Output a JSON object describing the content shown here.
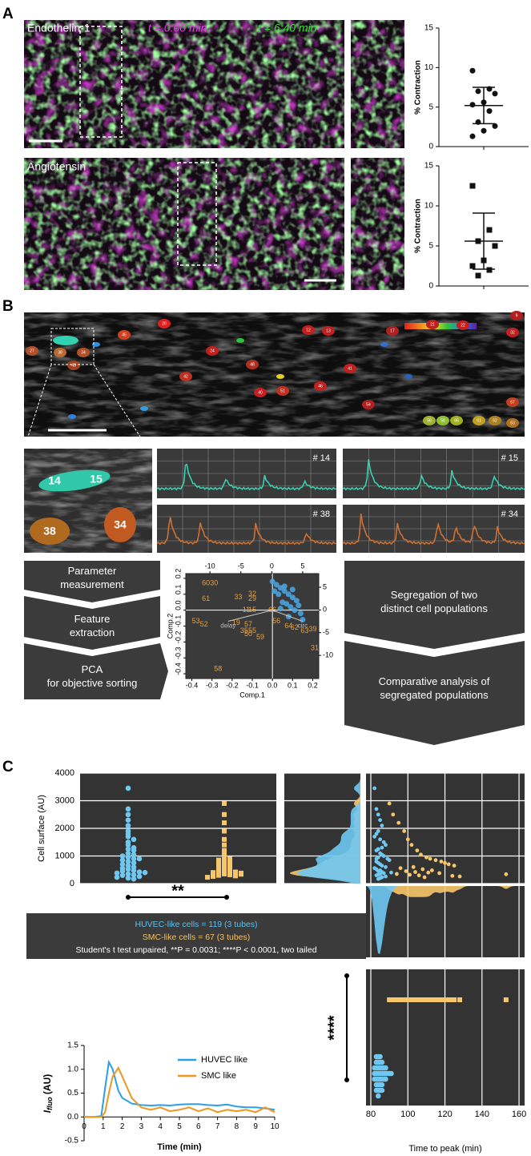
{
  "panel_labels": [
    "A",
    "B",
    "C"
  ],
  "panel_a": {
    "images": [
      "Endothelin-1",
      "Angiotensin"
    ],
    "time_start": "t = 0:00 min",
    "time_end": "t = 6:40 min"
  },
  "panel_b": {
    "cell_numbers": [
      "27",
      "38",
      "34",
      "43",
      "45",
      "20",
      "24",
      "12",
      "13",
      "17",
      "21",
      "22",
      "32",
      "9",
      "41",
      "42",
      "46",
      "48",
      "51",
      "54",
      "56",
      "58",
      "66",
      "61",
      "62",
      "63",
      "67",
      "40"
    ],
    "zoom_numbers": [
      "14",
      "15",
      "38",
      "34"
    ],
    "trace_labels": [
      "# 14",
      "# 15",
      "# 38",
      "# 34"
    ],
    "flow_left": [
      [
        "Parameter",
        "measurement"
      ],
      [
        "Feature",
        "extraction"
      ],
      [
        "PCA",
        "for objective sorting"
      ]
    ],
    "flow_right": [
      [
        "Segregation of two",
        "distinct cell populations"
      ],
      [
        "Comparative analysis of",
        "segregated populations"
      ]
    ]
  },
  "panel_c": {
    "legend_lines": [
      "HUVEC-like cells = 119 (3 tubes)",
      "SMC-like cells = 67 (3 tubes)",
      "Student's t test unpaired, **P = 0.0031; ****P < 0.0001, two tailed"
    ],
    "legend_colors": [
      "#5bc0f0",
      "#f5c060",
      "#ffffff"
    ],
    "significance": [
      "**",
      "****"
    ]
  },
  "chart_data": [
    {
      "type": "dot",
      "ylabel": "% Contraction",
      "values": [
        9.6,
        7.3,
        7.0,
        6.7,
        5.6,
        5.3,
        4.5,
        3.1,
        2.6,
        2.0,
        1.3
      ],
      "mean": 5.2,
      "sd": 2.3,
      "ylim": [
        0,
        15
      ],
      "yticks": [
        0,
        5,
        10,
        15
      ],
      "color": "#111111",
      "marker": "circle"
    },
    {
      "type": "dot",
      "ylabel": "% Contraction",
      "values": [
        12.5,
        7.0,
        5.6,
        5.0,
        3.2,
        2.5,
        2.0,
        1.3
      ],
      "mean": 5.6,
      "sd": 3.5,
      "ylim": [
        0,
        15
      ],
      "yticks": [
        0,
        5,
        10,
        15
      ],
      "color": "#111111",
      "marker": "square"
    },
    {
      "type": "biplot",
      "xlabel": "Comp.1",
      "ylabel": "Comp.2",
      "xlim": [
        -0.43,
        0.23
      ],
      "ylim": [
        -0.43,
        0.23
      ],
      "xticks": [
        {
          "value": -0.4,
          "label": "-0.4"
        },
        {
          "value": -0.3,
          "label": "-0.3"
        },
        {
          "value": -0.2,
          "label": "-0.2"
        },
        {
          "value": -0.1,
          "label": "-0.1"
        },
        {
          "value": 0,
          "label": "0.0"
        },
        0.1,
        0.2
      ],
      "yticks": [
        {
          "value": -0.4,
          "label": "-0.4"
        },
        {
          "value": -0.3,
          "label": "-0.3"
        },
        {
          "value": -0.2,
          "label": "-0.2"
        },
        {
          "value": -0.1,
          "label": "-0.1"
        },
        {
          "value": 0,
          "label": "0.0"
        },
        0.1,
        0.2
      ],
      "x2lim": [
        -13.9,
        7.6
      ],
      "x2ticks": [
        -10,
        -5,
        0,
        5
      ],
      "y2lim": [
        -15.1,
        8.0
      ],
      "y2ticks": [
        5,
        0,
        -5,
        -10
      ],
      "series": [
        {
          "color": "#e8a040",
          "labels": [
            "60",
            "30",
            "61",
            "33",
            "32",
            "29",
            "11",
            "15",
            "19",
            "57",
            "53",
            "52",
            "35",
            "55",
            "50",
            "59",
            "58",
            "56",
            "64",
            "62",
            "63",
            "39",
            "31",
            "66"
          ],
          "x": [
            -0.33,
            -0.29,
            -0.33,
            -0.17,
            -0.1,
            -0.1,
            -0.13,
            -0.1,
            -0.18,
            -0.12,
            -0.38,
            -0.34,
            -0.14,
            -0.1,
            -0.12,
            -0.06,
            -0.27,
            0.02,
            0.08,
            0.11,
            0.16,
            0.2,
            0.21,
            0.0
          ],
          "values": [
            0.17,
            0.17,
            0.07,
            0.08,
            0.1,
            0.07,
            0.0,
            0.0,
            -0.08,
            -0.09,
            -0.07,
            -0.09,
            -0.13,
            -0.13,
            -0.15,
            -0.17,
            -0.37,
            -0.07,
            -0.1,
            -0.11,
            -0.13,
            -0.12,
            -0.24,
            0.0
          ]
        },
        {
          "color": "#4aa8e8",
          "x": [
            0.0,
            0.02,
            0.04,
            0.06,
            0.08,
            0.1,
            0.12,
            0.03,
            0.05,
            0.07,
            0.09,
            0.11,
            0.14,
            0.01,
            0.06,
            0.1,
            0.13,
            0.15,
            0.04,
            0.08
          ],
          "values": [
            0.18,
            0.16,
            0.14,
            0.12,
            0.1,
            0.08,
            0.06,
            0.1,
            0.05,
            0.04,
            0.02,
            0.0,
            -0.02,
            0.12,
            0.15,
            0.13,
            0.03,
            -0.06,
            0.01,
            -0.04
          ]
        }
      ],
      "loadings": [
        {
          "label": "delay",
          "x": -0.22,
          "y": -0.07
        },
        {
          "label": "circ",
          "x": 0.15,
          "y": -0.07
        }
      ]
    },
    {
      "type": "cells",
      "ylabel": "Cell surface (AU)",
      "xlabel": "Time to peak (min)",
      "ylim": [
        0,
        4000
      ],
      "yticks": [
        0,
        1000,
        2000,
        3000,
        4000
      ],
      "xlim": [
        77.4,
        163
      ],
      "xticks": [
        80,
        100,
        120,
        140,
        160
      ],
      "series": [
        {
          "color": "#6ec8f2",
          "x": [
            82,
            83,
            84,
            85,
            86,
            84,
            83,
            82,
            85,
            87,
            88,
            86,
            84,
            83,
            85,
            86,
            87,
            84,
            89,
            90,
            83,
            84,
            85,
            86,
            88,
            82,
            83,
            85,
            84,
            86,
            87,
            85,
            84,
            83,
            88,
            86,
            85,
            84,
            91,
            83
          ],
          "values": [
            3450,
            2700,
            2500,
            2300,
            2100,
            1900,
            1800,
            1700,
            1600,
            1500,
            1400,
            1300,
            1250,
            1200,
            1100,
            1050,
            1000,
            950,
            900,
            850,
            800,
            750,
            700,
            650,
            600,
            560,
            520,
            480,
            450,
            420,
            380,
            350,
            320,
            300,
            260,
            230,
            200,
            170,
            400,
            900
          ]
        },
        {
          "color": "#f7c56a",
          "x": [
            90,
            92,
            95,
            98,
            100,
            102,
            105,
            107,
            110,
            112,
            115,
            118,
            120,
            122,
            125,
            103,
            96,
            108,
            113,
            99,
            104,
            111,
            117,
            94,
            101,
            106,
            124,
            128,
            153,
            109
          ],
          "values": [
            2900,
            2500,
            2200,
            1900,
            1600,
            1400,
            1200,
            1050,
            950,
            900,
            850,
            800,
            750,
            700,
            650,
            600,
            560,
            520,
            480,
            450,
            420,
            400,
            380,
            350,
            320,
            300,
            280,
            260,
            340,
            230
          ]
        }
      ]
    },
    {
      "type": "line",
      "ylabel": "I",
      "ylabel_sub": "fluo",
      "ylabel_unit": " (AU)",
      "xlabel": "Time (min)",
      "x": [
        0,
        0.5,
        0.9,
        1.1,
        1.3,
        1.5,
        1.8,
        2.0,
        2.5,
        3,
        3.5,
        4,
        4.5,
        5,
        5.5,
        6,
        6.5,
        7,
        7.5,
        8,
        8.5,
        9,
        9.5,
        10
      ],
      "xlim": [
        0,
        10
      ],
      "xticks": [
        0,
        1,
        2,
        3,
        4,
        5,
        6,
        7,
        8,
        9,
        10
      ],
      "ylim": [
        -0.5,
        1.5
      ],
      "yticks": [
        {
          "value": -0.5,
          "label": "-0.5"
        },
        {
          "value": 0,
          "label": "0.0"
        },
        0.5,
        {
          "value": 1,
          "label": "1.0"
        },
        1.5
      ],
      "series": [
        {
          "name": "HUVEC like",
          "color": "#2a9fe8",
          "values": [
            0,
            0,
            0.02,
            0.6,
            1.15,
            1.0,
            0.55,
            0.4,
            0.28,
            0.25,
            0.24,
            0.25,
            0.24,
            0.26,
            0.27,
            0.27,
            0.25,
            0.24,
            0.26,
            0.22,
            0.2,
            0.2,
            0.18,
            0.15
          ]
        },
        {
          "name": "SMC like",
          "color": "#f0961e",
          "values": [
            0,
            0,
            0,
            0.1,
            0.5,
            0.85,
            1.03,
            0.85,
            0.4,
            0.2,
            0.15,
            0.2,
            0.12,
            0.15,
            0.2,
            0.12,
            0.18,
            0.1,
            0.15,
            0.12,
            0.15,
            0.1,
            0.2,
            0.1
          ]
        }
      ]
    }
  ]
}
